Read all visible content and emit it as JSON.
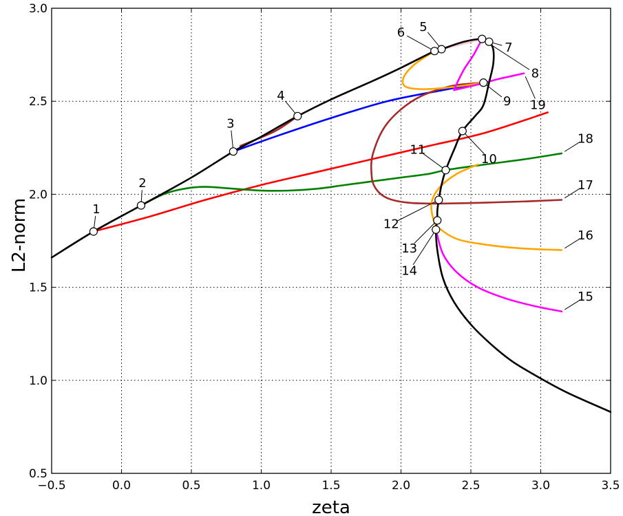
{
  "chart_data": {
    "type": "line",
    "title": "",
    "xlabel": "zeta",
    "ylabel": "L2-norm",
    "xlim": [
      -0.5,
      3.5
    ],
    "ylim": [
      0.5,
      3.0
    ],
    "xticks": [
      -0.5,
      0.0,
      0.5,
      1.0,
      1.5,
      2.0,
      2.5,
      3.0,
      3.5
    ],
    "yticks": [
      0.5,
      1.0,
      1.5,
      2.0,
      2.5,
      3.0
    ],
    "xtick_labels": [
      "−0.5",
      "0.0",
      "0.5",
      "1.0",
      "1.5",
      "2.0",
      "2.5",
      "3.0",
      "3.5"
    ],
    "ytick_labels": [
      "0.5",
      "1.0",
      "1.5",
      "2.0",
      "2.5",
      "3.0"
    ],
    "grid": true,
    "colors": {
      "black": "#000000",
      "red": "#ff0000",
      "green": "#008000",
      "blue": "#0000ff",
      "brown": "#a52a2a",
      "orange": "#ffa500",
      "magenta": "#ff00ff",
      "pink": "#ffc0cb"
    },
    "series": [
      {
        "color": "black",
        "points": [
          [
            -0.5,
            1.66
          ],
          [
            -0.2,
            1.8
          ],
          [
            0.14,
            1.94
          ],
          [
            0.5,
            2.09
          ],
          [
            0.8,
            2.23
          ],
          [
            1.0,
            2.31
          ],
          [
            1.26,
            2.42
          ],
          [
            1.5,
            2.51
          ],
          [
            1.8,
            2.61
          ],
          [
            2.0,
            2.68
          ],
          [
            2.24,
            2.77
          ],
          [
            2.29,
            2.78
          ],
          [
            2.45,
            2.82
          ],
          [
            2.58,
            2.835
          ],
          [
            2.63,
            2.82
          ],
          [
            2.66,
            2.78
          ],
          [
            2.66,
            2.7
          ],
          [
            2.63,
            2.6
          ],
          [
            2.59,
            2.48
          ],
          [
            2.53,
            2.42
          ],
          [
            2.44,
            2.34
          ],
          [
            2.38,
            2.24
          ],
          [
            2.32,
            2.13
          ],
          [
            2.29,
            2.05
          ],
          [
            2.27,
            1.97
          ],
          [
            2.26,
            1.91
          ],
          [
            2.26,
            1.86
          ],
          [
            2.25,
            1.81
          ],
          [
            2.26,
            1.7
          ],
          [
            2.3,
            1.55
          ],
          [
            2.38,
            1.42
          ],
          [
            2.5,
            1.3
          ],
          [
            2.65,
            1.19
          ],
          [
            2.8,
            1.1
          ],
          [
            3.0,
            1.01
          ],
          [
            3.2,
            0.93
          ],
          [
            3.5,
            0.83
          ]
        ]
      },
      {
        "color": "red",
        "points": [
          [
            -0.2,
            1.8
          ],
          [
            0.2,
            1.88
          ],
          [
            0.6,
            1.97
          ],
          [
            1.0,
            2.05
          ],
          [
            1.4,
            2.12
          ],
          [
            1.8,
            2.19
          ],
          [
            2.2,
            2.26
          ],
          [
            2.6,
            2.33
          ],
          [
            3.05,
            2.44
          ]
        ]
      },
      {
        "color": "green",
        "points": [
          [
            0.14,
            1.94
          ],
          [
            0.3,
            2.0
          ],
          [
            0.45,
            2.03
          ],
          [
            0.6,
            2.04
          ],
          [
            0.8,
            2.03
          ],
          [
            1.0,
            2.02
          ],
          [
            1.2,
            2.02
          ],
          [
            1.4,
            2.03
          ],
          [
            1.6,
            2.05
          ],
          [
            1.8,
            2.07
          ],
          [
            2.0,
            2.09
          ],
          [
            2.2,
            2.11
          ],
          [
            2.32,
            2.13
          ],
          [
            2.6,
            2.16
          ],
          [
            2.9,
            2.19
          ],
          [
            3.15,
            2.22
          ]
        ]
      },
      {
        "color": "blue",
        "points": [
          [
            0.8,
            2.23
          ],
          [
            1.1,
            2.31
          ],
          [
            1.5,
            2.41
          ],
          [
            1.9,
            2.5
          ],
          [
            2.3,
            2.56
          ],
          [
            2.59,
            2.6
          ]
        ]
      },
      {
        "color": "brown",
        "points": [
          [
            0.85,
            2.26
          ],
          [
            1.1,
            2.34
          ],
          [
            1.26,
            2.42
          ]
        ]
      },
      {
        "color": "brown",
        "points": [
          [
            2.59,
            2.6
          ],
          [
            2.35,
            2.58
          ],
          [
            2.1,
            2.51
          ],
          [
            1.9,
            2.38
          ],
          [
            1.8,
            2.22
          ],
          [
            1.79,
            2.1
          ],
          [
            1.82,
            2.03
          ],
          [
            1.9,
            1.98
          ],
          [
            2.05,
            1.955
          ],
          [
            2.27,
            1.95
          ],
          [
            2.6,
            1.955
          ],
          [
            2.9,
            1.962
          ],
          [
            3.15,
            1.97
          ]
        ]
      },
      {
        "color": "orange",
        "points": [
          [
            2.24,
            2.77
          ],
          [
            2.1,
            2.7
          ],
          [
            2.02,
            2.63
          ],
          [
            2.03,
            2.58
          ],
          [
            2.15,
            2.565
          ],
          [
            2.35,
            2.575
          ],
          [
            2.59,
            2.6
          ]
        ]
      },
      {
        "color": "orange",
        "points": [
          [
            2.55,
            2.16
          ],
          [
            2.4,
            2.11
          ],
          [
            2.28,
            2.04
          ],
          [
            2.22,
            1.96
          ],
          [
            2.23,
            1.87
          ],
          [
            2.27,
            1.82
          ],
          [
            2.4,
            1.76
          ],
          [
            2.6,
            1.73
          ],
          [
            2.85,
            1.71
          ],
          [
            3.15,
            1.7
          ]
        ]
      },
      {
        "color": "magenta",
        "points": [
          [
            2.58,
            2.835
          ],
          [
            2.52,
            2.75
          ],
          [
            2.45,
            2.67
          ],
          [
            2.39,
            2.58
          ],
          [
            2.38,
            2.56
          ]
        ]
      },
      {
        "color": "magenta",
        "points": [
          [
            2.38,
            2.56
          ],
          [
            2.55,
            2.59
          ],
          [
            2.7,
            2.62
          ],
          [
            2.88,
            2.65
          ]
        ]
      },
      {
        "color": "magenta",
        "points": [
          [
            2.25,
            1.81
          ],
          [
            2.3,
            1.68
          ],
          [
            2.4,
            1.58
          ],
          [
            2.55,
            1.5
          ],
          [
            2.75,
            1.44
          ],
          [
            2.95,
            1.4
          ],
          [
            3.15,
            1.37
          ]
        ]
      },
      {
        "color": "pink",
        "points": [
          [
            2.29,
            2.78
          ],
          [
            2.45,
            2.81
          ],
          [
            2.58,
            2.835
          ]
        ]
      }
    ],
    "branch_points": [
      {
        "label": "1",
        "x": -0.2,
        "y": 1.8,
        "lx": -0.18,
        "ly": 1.92
      },
      {
        "label": "2",
        "x": 0.14,
        "y": 1.94,
        "lx": 0.15,
        "ly": 2.06
      },
      {
        "label": "3",
        "x": 0.8,
        "y": 2.23,
        "lx": 0.78,
        "ly": 2.38
      },
      {
        "label": "4",
        "x": 1.26,
        "y": 2.42,
        "lx": 1.14,
        "ly": 2.53
      },
      {
        "label": "5",
        "x": 2.29,
        "y": 2.78,
        "lx": 2.16,
        "ly": 2.9
      },
      {
        "label": "6",
        "x": 2.24,
        "y": 2.77,
        "lx": 2.0,
        "ly": 2.87
      },
      {
        "label": "7",
        "x": 2.63,
        "y": 2.82,
        "lx": 2.77,
        "ly": 2.79
      },
      {
        "label": "8",
        "x": 2.58,
        "y": 2.835,
        "lx": 2.96,
        "ly": 2.65
      },
      {
        "label": "9",
        "x": 2.59,
        "y": 2.6,
        "lx": 2.76,
        "ly": 2.5
      },
      {
        "label": "10",
        "x": 2.44,
        "y": 2.34,
        "lx": 2.63,
        "ly": 2.19
      },
      {
        "label": "11",
        "x": 2.32,
        "y": 2.13,
        "lx": 2.12,
        "ly": 2.24
      },
      {
        "label": "12",
        "x": 2.27,
        "y": 1.97,
        "lx": 1.93,
        "ly": 1.84
      },
      {
        "label": "13",
        "x": 2.26,
        "y": 1.86,
        "lx": 2.06,
        "ly": 1.71
      },
      {
        "label": "14",
        "x": 2.25,
        "y": 1.81,
        "lx": 2.06,
        "ly": 1.59
      },
      {
        "label": "15",
        "x": 3.15,
        "y": 1.37,
        "lx": 3.32,
        "ly": 1.45
      },
      {
        "label": "16",
        "x": 3.15,
        "y": 1.7,
        "lx": 3.32,
        "ly": 1.78
      },
      {
        "label": "17",
        "x": 3.15,
        "y": 1.97,
        "lx": 3.32,
        "ly": 2.05
      },
      {
        "label": "18",
        "x": 3.15,
        "y": 2.22,
        "lx": 3.32,
        "ly": 2.3
      },
      {
        "label": "19",
        "x": 2.88,
        "y": 2.65,
        "lx": 2.98,
        "ly": 2.48
      }
    ]
  }
}
